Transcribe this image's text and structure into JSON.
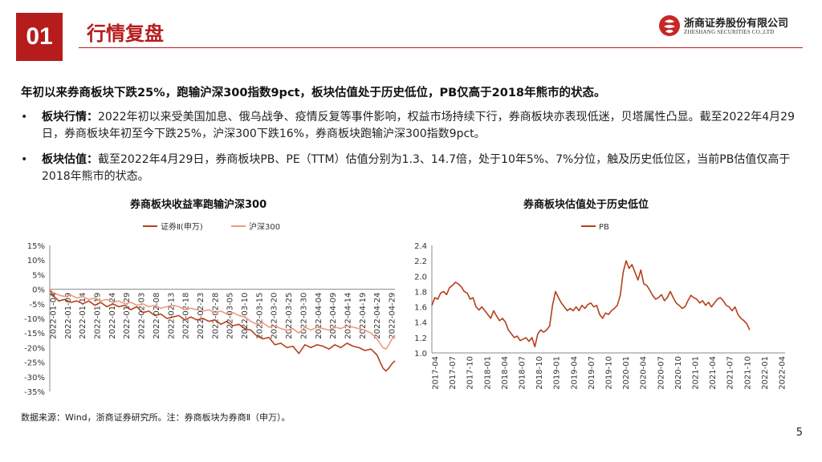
{
  "header": {
    "section_number": "01",
    "title": "行情复盘",
    "logo_cn": "浙商证券股份有限公司",
    "logo_en": "ZHESHANG SECURITIES CO.,LTD"
  },
  "headline": "年初以来券商板块下跌25%，跑输沪深300指数9pct，板块估值处于历史低位，PB仅高于2018年熊市的状态。",
  "bullets": [
    {
      "label": "板块行情：",
      "text": "2022年初以来受美国加息、俄乌战争、疫情反复等事件影响，权益市场持续下行，券商板块亦表现低迷，贝塔属性凸显。截至2022年4月29日，券商板块年初至今下跌25%，沪深300下跌16%，券商板块跑输沪深300指数9pct。"
    },
    {
      "label": "板块估值：",
      "text": "截至2022年4月29日，券商板块PB、PE（TTM）估值分别为1.3、14.7倍，处于10年5%、7%分位，触及历史低位区，当前PB估值仅高于2018年熊市的状态。"
    }
  ],
  "chart_data": [
    {
      "type": "line",
      "title": "券商板块收益率跑输沪深300",
      "legend_position": "top",
      "yticks": [
        "15%",
        "10%",
        "5%",
        "0%",
        "-5%",
        "-10%",
        "-15%",
        "-20%",
        "-25%",
        "-30%",
        "-35%"
      ],
      "ylim": [
        -35,
        15
      ],
      "x_tick_labels": [
        "2022-01-04",
        "2022-01-09",
        "2022-01-14",
        "2022-01-19",
        "2022-01-24",
        "2022-01-29",
        "2022-02-03",
        "2022-02-08",
        "2022-02-13",
        "2022-02-18",
        "2022-02-23",
        "2022-02-28",
        "2022-03-05",
        "2022-03-10",
        "2022-03-15",
        "2022-03-20",
        "2022-03-25",
        "2022-03-30",
        "2022-04-04",
        "2022-04-09",
        "2022-04-14",
        "2022-04-19",
        "2022-04-24",
        "2022-04-29"
      ],
      "x_day_range": [
        0,
        115
      ],
      "series": [
        {
          "name": "证券Ⅱ(申万)",
          "color": "#b5401c",
          "points": [
            [
              0,
              0
            ],
            [
              1,
              -2
            ],
            [
              3,
              -4
            ],
            [
              5,
              -3.5
            ],
            [
              7,
              -4.5
            ],
            [
              9,
              -4
            ],
            [
              11,
              -5
            ],
            [
              13,
              -4
            ],
            [
              15,
              -5.5
            ],
            [
              17,
              -4.5
            ],
            [
              19,
              -6
            ],
            [
              21,
              -5
            ],
            [
              23,
              -6
            ],
            [
              25,
              -5.5
            ],
            [
              27,
              -7
            ],
            [
              29,
              -6
            ],
            [
              31,
              -8
            ],
            [
              33,
              -7.5
            ],
            [
              35,
              -9
            ],
            [
              37,
              -8.5
            ],
            [
              39,
              -10
            ],
            [
              41,
              -9.5
            ],
            [
              43,
              -9
            ],
            [
              45,
              -10.5
            ],
            [
              47,
              -9.5
            ],
            [
              49,
              -10.5
            ],
            [
              51,
              -10
            ],
            [
              53,
              -11
            ],
            [
              55,
              -10.5
            ],
            [
              57,
              -12
            ],
            [
              59,
              -11
            ],
            [
              61,
              -12.5
            ],
            [
              63,
              -12
            ],
            [
              65,
              -13.5
            ],
            [
              67,
              -14
            ],
            [
              69,
              -16
            ],
            [
              71,
              -17
            ],
            [
              73,
              -16.5
            ],
            [
              75,
              -19
            ],
            [
              77,
              -18.5
            ],
            [
              79,
              -20
            ],
            [
              81,
              -19.5
            ],
            [
              83,
              -22
            ],
            [
              85,
              -19
            ],
            [
              87,
              -20
            ],
            [
              89,
              -19
            ],
            [
              91,
              -19.5
            ],
            [
              93,
              -20.5
            ],
            [
              95,
              -19
            ],
            [
              97,
              -20
            ],
            [
              99,
              -18.5
            ],
            [
              101,
              -19.5
            ],
            [
              103,
              -20
            ],
            [
              105,
              -21
            ],
            [
              107,
              -20.5
            ],
            [
              109,
              -22.5
            ],
            [
              111,
              -27
            ],
            [
              112,
              -28
            ],
            [
              113,
              -27
            ],
            [
              114,
              -25.5
            ],
            [
              115,
              -24.5
            ]
          ]
        },
        {
          "name": "沪深300",
          "color": "#f09a80",
          "points": [
            [
              0,
              0
            ],
            [
              1,
              -1
            ],
            [
              3,
              -2
            ],
            [
              5,
              -2.5
            ],
            [
              7,
              -2
            ],
            [
              9,
              -3
            ],
            [
              11,
              -2.5
            ],
            [
              13,
              -3.5
            ],
            [
              15,
              -3
            ],
            [
              17,
              -4
            ],
            [
              19,
              -3.5
            ],
            [
              21,
              -4.5
            ],
            [
              23,
              -4
            ],
            [
              25,
              -5
            ],
            [
              27,
              -4.5
            ],
            [
              29,
              -5.5
            ],
            [
              31,
              -5
            ],
            [
              33,
              -6
            ],
            [
              35,
              -5.5
            ],
            [
              37,
              -6.5
            ],
            [
              39,
              -6
            ],
            [
              41,
              -5.5
            ],
            [
              43,
              -6
            ],
            [
              45,
              -7
            ],
            [
              47,
              -6.5
            ],
            [
              49,
              -7
            ],
            [
              51,
              -7.5
            ],
            [
              53,
              -7
            ],
            [
              55,
              -8
            ],
            [
              57,
              -7.5
            ],
            [
              59,
              -8.5
            ],
            [
              61,
              -8
            ],
            [
              63,
              -9
            ],
            [
              65,
              -9.5
            ],
            [
              67,
              -11
            ],
            [
              69,
              -12
            ],
            [
              71,
              -11.5
            ],
            [
              73,
              -13
            ],
            [
              75,
              -12.5
            ],
            [
              77,
              -13.5
            ],
            [
              79,
              -14
            ],
            [
              81,
              -13.5
            ],
            [
              83,
              -15
            ],
            [
              85,
              -13
            ],
            [
              87,
              -14
            ],
            [
              89,
              -13
            ],
            [
              91,
              -13.5
            ],
            [
              93,
              -14
            ],
            [
              95,
              -13
            ],
            [
              97,
              -13.5
            ],
            [
              99,
              -12.5
            ],
            [
              101,
              -13
            ],
            [
              103,
              -13.5
            ],
            [
              105,
              -14
            ],
            [
              107,
              -15
            ],
            [
              109,
              -17
            ],
            [
              111,
              -20
            ],
            [
              112,
              -20.5
            ],
            [
              113,
              -19
            ],
            [
              114,
              -17
            ],
            [
              115,
              -16
            ]
          ]
        }
      ]
    },
    {
      "type": "line",
      "title": "券商板块估值处于历史低位",
      "legend_position": "top",
      "yticks": [
        "2.4",
        "2.2",
        "2.0",
        "1.8",
        "1.6",
        "1.4",
        "1.2",
        "1.0"
      ],
      "ylim": [
        1.0,
        2.4
      ],
      "x_tick_labels": [
        "2017-04",
        "2017-07",
        "2017-10",
        "2018-01",
        "2018-04",
        "2018-07",
        "2018-10",
        "2019-01",
        "2019-04",
        "2019-07",
        "2019-10",
        "2020-01",
        "2020-04",
        "2020-07",
        "2020-10",
        "2021-01",
        "2021-04",
        "2021-07",
        "2021-10",
        "2022-01",
        "2022-04"
      ],
      "x_month_range": [
        0,
        60
      ],
      "series": [
        {
          "name": "PB",
          "color": "#b5401c",
          "points": [
            [
              0,
              1.62
            ],
            [
              0.5,
              1.72
            ],
            [
              1,
              1.7
            ],
            [
              1.5,
              1.78
            ],
            [
              2,
              1.8
            ],
            [
              2.5,
              1.76
            ],
            [
              3,
              1.85
            ],
            [
              3.5,
              1.88
            ],
            [
              4,
              1.92
            ],
            [
              4.5,
              1.9
            ],
            [
              5,
              1.86
            ],
            [
              5.5,
              1.8
            ],
            [
              6,
              1.78
            ],
            [
              6.5,
              1.7
            ],
            [
              7,
              1.72
            ],
            [
              7.5,
              1.6
            ],
            [
              8,
              1.56
            ],
            [
              8.5,
              1.6
            ],
            [
              9,
              1.55
            ],
            [
              9.5,
              1.5
            ],
            [
              10,
              1.45
            ],
            [
              10.5,
              1.55
            ],
            [
              11,
              1.48
            ],
            [
              11.5,
              1.42
            ],
            [
              12,
              1.45
            ],
            [
              12.5,
              1.4
            ],
            [
              13,
              1.3
            ],
            [
              13.5,
              1.25
            ],
            [
              14,
              1.2
            ],
            [
              14.5,
              1.22
            ],
            [
              15,
              1.16
            ],
            [
              15.5,
              1.18
            ],
            [
              16,
              1.2
            ],
            [
              16.5,
              1.15
            ],
            [
              17,
              1.2
            ],
            [
              17.5,
              1.08
            ],
            [
              18,
              1.25
            ],
            [
              18.5,
              1.3
            ],
            [
              19,
              1.27
            ],
            [
              19.5,
              1.3
            ],
            [
              20,
              1.35
            ],
            [
              20.5,
              1.62
            ],
            [
              21,
              1.8
            ],
            [
              21.5,
              1.72
            ],
            [
              22,
              1.65
            ],
            [
              22.5,
              1.6
            ],
            [
              23,
              1.55
            ],
            [
              23.5,
              1.58
            ],
            [
              24,
              1.55
            ],
            [
              24.5,
              1.6
            ],
            [
              25,
              1.55
            ],
            [
              25.5,
              1.62
            ],
            [
              26,
              1.58
            ],
            [
              26.5,
              1.63
            ],
            [
              27,
              1.65
            ],
            [
              27.5,
              1.6
            ],
            [
              28,
              1.62
            ],
            [
              28.5,
              1.5
            ],
            [
              29,
              1.45
            ],
            [
              29.5,
              1.52
            ],
            [
              30,
              1.5
            ],
            [
              30.5,
              1.55
            ],
            [
              31,
              1.58
            ],
            [
              31.5,
              1.62
            ],
            [
              32,
              1.75
            ],
            [
              32.5,
              2.05
            ],
            [
              33,
              2.2
            ],
            [
              33.5,
              2.1
            ],
            [
              34,
              2.15
            ],
            [
              34.5,
              2.05
            ],
            [
              35,
              1.95
            ],
            [
              35.5,
              2.08
            ],
            [
              36,
              1.9
            ],
            [
              36.5,
              1.88
            ],
            [
              37,
              1.82
            ],
            [
              37.5,
              1.75
            ],
            [
              38,
              1.7
            ],
            [
              38.5,
              1.72
            ],
            [
              39,
              1.76
            ],
            [
              39.5,
              1.68
            ],
            [
              40,
              1.72
            ],
            [
              40.5,
              1.8
            ],
            [
              41,
              1.72
            ],
            [
              41.5,
              1.65
            ],
            [
              42,
              1.62
            ],
            [
              42.5,
              1.58
            ],
            [
              43,
              1.6
            ],
            [
              43.5,
              1.68
            ],
            [
              44,
              1.75
            ],
            [
              44.5,
              1.72
            ],
            [
              45,
              1.7
            ],
            [
              45.5,
              1.65
            ],
            [
              46,
              1.68
            ],
            [
              46.5,
              1.62
            ],
            [
              47,
              1.66
            ],
            [
              47.5,
              1.6
            ],
            [
              48,
              1.65
            ],
            [
              48.5,
              1.7
            ],
            [
              49,
              1.72
            ],
            [
              49.5,
              1.68
            ],
            [
              50,
              1.62
            ],
            [
              50.5,
              1.6
            ],
            [
              51,
              1.55
            ],
            [
              51.5,
              1.6
            ],
            [
              52,
              1.5
            ],
            [
              52.5,
              1.45
            ],
            [
              53,
              1.42
            ],
            [
              53.5,
              1.38
            ],
            [
              54,
              1.3
            ]
          ]
        }
      ]
    }
  ],
  "source": "数据来源：Wind，浙商证券研究所。注：券商板块为券商Ⅱ（申万）。",
  "page_number": "5"
}
